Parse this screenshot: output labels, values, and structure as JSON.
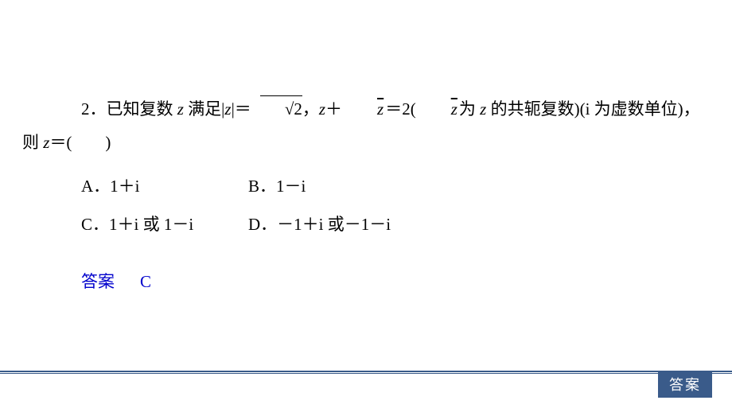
{
  "question": {
    "number": "2．",
    "prefix": "已知复数 ",
    "var_z": "z",
    "text1": " 满足|",
    "var_z2": "z",
    "text2": "|＝",
    "sqrt_val": "2",
    "text3": "，",
    "var_z3": "z",
    "plus1": "＋",
    "zbar1": "z",
    "eq1": "＝2(",
    "zbar2": "z",
    "text4": "为 ",
    "var_z4": "z",
    "text5": " 的共轭复数)(i 为虚数单位)，",
    "line2_prefix": "则 ",
    "var_z5": "z",
    "line2_suffix": "＝(　　)"
  },
  "options": {
    "A": {
      "label": "A．",
      "text": "1＋i"
    },
    "B": {
      "label": "B．",
      "text": "1－i"
    },
    "C": {
      "label": "C．",
      "text": "1＋i 或 1－i"
    },
    "D": {
      "label": "D．",
      "text": "－1＋i 或－1－i"
    }
  },
  "answer": {
    "label": "答案",
    "value": "C"
  },
  "footer": {
    "badge": "答案"
  },
  "colors": {
    "text": "#000000",
    "answer": "#0000cc",
    "badge_bg": "#3a5b8a",
    "badge_text": "#ffffff",
    "background": "#ffffff"
  }
}
